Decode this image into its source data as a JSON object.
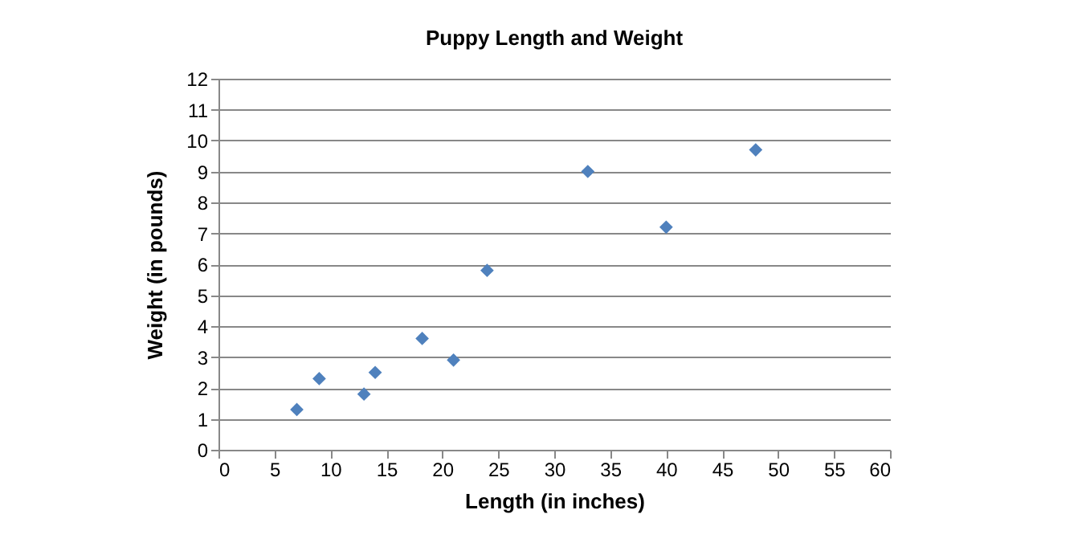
{
  "chart_data": {
    "type": "scatter",
    "title": "Puppy Length and Weight",
    "xlabel": "Length (in inches)",
    "ylabel": "Weight (in pounds)",
    "x": [
      7,
      9,
      13,
      14,
      18.2,
      21,
      24,
      33,
      40,
      48
    ],
    "series": [
      {
        "color": "#4f81bd",
        "values": [
          1.3,
          2.3,
          1.8,
          2.5,
          3.6,
          2.9,
          5.8,
          9.0,
          7.2,
          9.7
        ]
      }
    ],
    "xlim": [
      0,
      60
    ],
    "xticks": [
      0,
      5,
      10,
      15,
      20,
      25,
      30,
      35,
      40,
      45,
      50,
      55,
      60
    ],
    "ylim": [
      0,
      12
    ],
    "yticks": [
      0,
      1,
      2,
      3,
      4,
      5,
      6,
      7,
      8,
      9,
      10,
      11,
      12
    ],
    "grid": "y",
    "marker": "diamond"
  }
}
